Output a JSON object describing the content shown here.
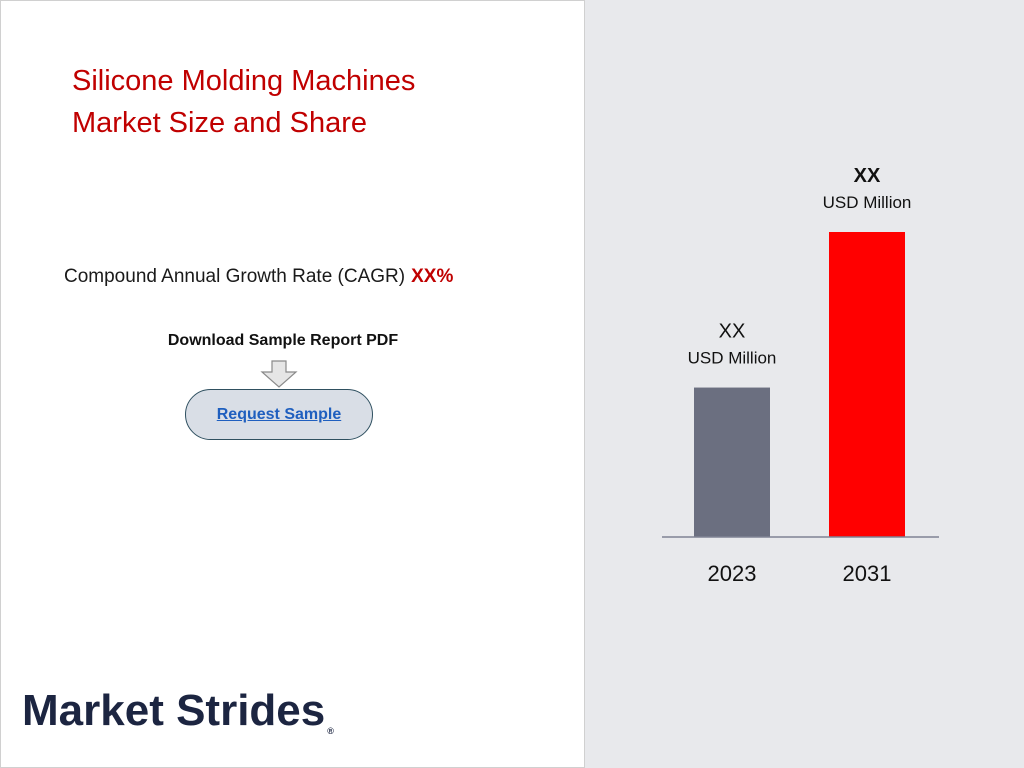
{
  "title": {
    "line1": "Silicone Molding Machines",
    "line2": "Market Size and Share"
  },
  "cagr": {
    "label": "Compound Annual Growth Rate (CAGR)",
    "value": "XX%"
  },
  "download": {
    "label": "Download Sample Report PDF",
    "button_label": "Request Sample",
    "arrow_icon": "down-arrow-icon"
  },
  "logo": {
    "text": "Market Strides",
    "registered": "®"
  },
  "colors": {
    "title": "#c00000",
    "bar_2023": "#6b6f80",
    "bar_2031": "#ff0000",
    "panel_bg": "#e8e9ec",
    "logo": "#1c2541"
  },
  "chart_data": {
    "type": "bar",
    "categories": [
      "2023",
      "2031"
    ],
    "value_labels": [
      "XX",
      "XX"
    ],
    "unit_labels": [
      "USD Million",
      "USD Million"
    ],
    "relative_values": [
      0.49,
      1.0
    ],
    "bar_colors": [
      "#6b6f80",
      "#ff0000"
    ],
    "value_label_bold": [
      false,
      true
    ],
    "grid": false
  }
}
